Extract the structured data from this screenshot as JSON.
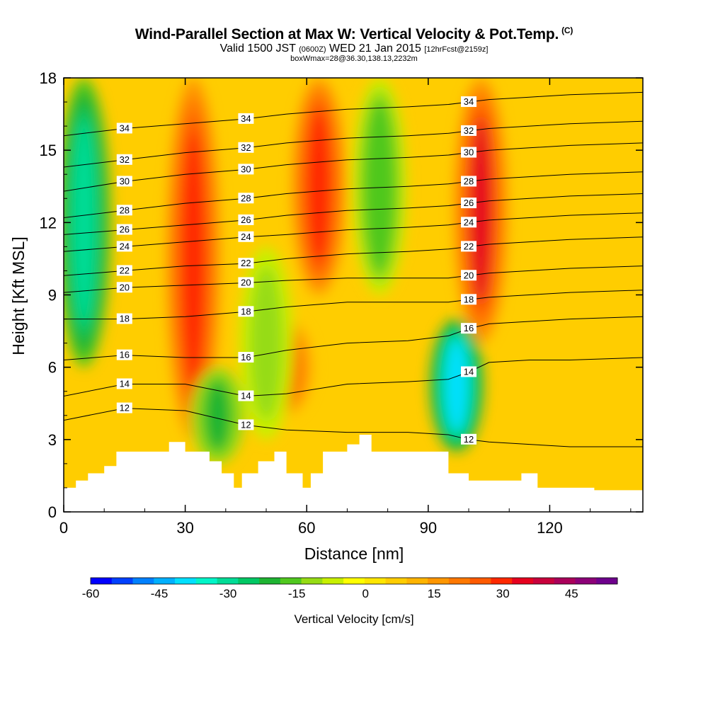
{
  "title": {
    "main": "Wind-Parallel Section at Max W: Vertical Velocity & Pot.Temp.",
    "copyright": "(C)",
    "valid_a": "Valid 1500 JST",
    "valid_z": "(0600Z)",
    "valid_b": "WED 21 Jan 2015",
    "valid_fcst": "[12hrFcst@2159z]",
    "box": "boxWmax=28@36.30,138.13,2232m"
  },
  "chart_data": {
    "type": "heatmap",
    "xlabel": "Distance [nm]",
    "ylabel": "Height [Kft MSL]",
    "xlim": [
      0,
      143
    ],
    "ylim": [
      0,
      18
    ],
    "xticks": [
      0,
      30,
      60,
      90,
      120
    ],
    "yticks": [
      0,
      3,
      6,
      9,
      12,
      15,
      18
    ],
    "colorbar": {
      "label": "Vertical Velocity [cm/s]",
      "ticks": [
        -60,
        -45,
        -30,
        -15,
        0,
        15,
        30,
        45
      ],
      "range": [
        -60,
        55
      ],
      "colors": [
        "#0000ff",
        "#0040ff",
        "#0080ff",
        "#00b0ff",
        "#00e0ff",
        "#00f5c8",
        "#00dc96",
        "#00c864",
        "#1eb432",
        "#50c81e",
        "#96dc14",
        "#c8f000",
        "#ffff00",
        "#ffe600",
        "#ffcd00",
        "#ffb400",
        "#ff9600",
        "#ff7800",
        "#ff5a00",
        "#ff2800",
        "#e6001e",
        "#c8003c",
        "#aa005a",
        "#8c0078",
        "#6e008c"
      ]
    },
    "vertical_velocity_features": [
      {
        "label": "updraft",
        "x": 32,
        "y_range": [
          3,
          18
        ],
        "peak": 28
      },
      {
        "label": "updraft",
        "x": 55,
        "y_range": [
          4,
          8
        ],
        "peak": 25
      },
      {
        "label": "updraft",
        "x": 63,
        "y_range": [
          9,
          18
        ],
        "peak": 30
      },
      {
        "label": "updraft",
        "x": 103,
        "y_range": [
          7,
          18
        ],
        "peak": 32
      },
      {
        "label": "downdraft",
        "x": 5,
        "y_range": [
          6,
          18
        ],
        "peak": -30
      },
      {
        "label": "downdraft",
        "x": 38,
        "y_range": [
          2,
          6
        ],
        "peak": -20
      },
      {
        "label": "downdraft",
        "x": 50,
        "y_range": [
          3,
          11
        ],
        "peak": -12
      },
      {
        "label": "downdraft",
        "x": 78,
        "y_range": [
          9,
          18
        ],
        "peak": -18
      },
      {
        "label": "downdraft",
        "x": 97,
        "y_range": [
          2.5,
          8
        ],
        "peak": -38
      }
    ],
    "theta_contours": [
      {
        "label": "12",
        "x": [
          0,
          15,
          30,
          45,
          55,
          70,
          85,
          95,
          100,
          105,
          115,
          125,
          143
        ],
        "y": [
          3.8,
          4.3,
          4.2,
          3.6,
          3.4,
          3.3,
          3.3,
          3.2,
          3.0,
          2.9,
          2.8,
          2.7,
          2.7
        ]
      },
      {
        "label": "14",
        "x": [
          0,
          15,
          30,
          45,
          55,
          70,
          85,
          95,
          100,
          105,
          115,
          125,
          143
        ],
        "y": [
          4.8,
          5.3,
          5.3,
          4.8,
          4.9,
          5.3,
          5.4,
          5.5,
          5.8,
          6.2,
          6.3,
          6.3,
          6.4
        ]
      },
      {
        "label": "16",
        "x": [
          0,
          15,
          30,
          45,
          55,
          70,
          85,
          95,
          100,
          105,
          115,
          125,
          143
        ],
        "y": [
          6.3,
          6.5,
          6.4,
          6.4,
          6.7,
          7.0,
          7.1,
          7.3,
          7.6,
          7.8,
          7.9,
          8.0,
          8.1
        ]
      },
      {
        "label": "18",
        "x": [
          0,
          15,
          30,
          45,
          55,
          70,
          85,
          95,
          100,
          105,
          115,
          125,
          143
        ],
        "y": [
          8.0,
          8.0,
          8.1,
          8.3,
          8.5,
          8.7,
          8.7,
          8.7,
          8.8,
          8.9,
          9.0,
          9.1,
          9.2
        ]
      },
      {
        "label": "20",
        "x": [
          0,
          15,
          30,
          45,
          55,
          70,
          85,
          95,
          100,
          105,
          115,
          125,
          143
        ],
        "y": [
          9.1,
          9.3,
          9.4,
          9.5,
          9.6,
          9.7,
          9.7,
          9.7,
          9.8,
          9.9,
          10.0,
          10.1,
          10.2
        ]
      },
      {
        "label": "22",
        "x": [
          0,
          15,
          30,
          45,
          55,
          70,
          85,
          95,
          100,
          105,
          115,
          125,
          143
        ],
        "y": [
          9.8,
          10.0,
          10.2,
          10.3,
          10.5,
          10.7,
          10.8,
          10.9,
          11.0,
          11.1,
          11.2,
          11.3,
          11.4
        ]
      },
      {
        "label": "24",
        "x": [
          0,
          15,
          30,
          45,
          55,
          70,
          85,
          95,
          100,
          105,
          115,
          125,
          143
        ],
        "y": [
          10.8,
          11.0,
          11.2,
          11.4,
          11.5,
          11.7,
          11.8,
          11.9,
          12.0,
          12.1,
          12.2,
          12.3,
          12.4
        ]
      },
      {
        "label": "26",
        "x": [
          0,
          15,
          30,
          45,
          55,
          70,
          85,
          95,
          100,
          105,
          115,
          125,
          143
        ],
        "y": [
          11.5,
          11.7,
          11.9,
          12.1,
          12.3,
          12.5,
          12.6,
          12.7,
          12.8,
          12.9,
          13.0,
          13.1,
          13.2
        ]
      },
      {
        "label": "28",
        "x": [
          0,
          15,
          30,
          45,
          55,
          70,
          85,
          95,
          100,
          105,
          115,
          125,
          143
        ],
        "y": [
          12.2,
          12.5,
          12.8,
          13.0,
          13.2,
          13.4,
          13.5,
          13.6,
          13.7,
          13.8,
          13.9,
          14.0,
          14.1
        ]
      },
      {
        "label": "30",
        "x": [
          0,
          15,
          30,
          45,
          55,
          70,
          85,
          95,
          100,
          105,
          115,
          125,
          143
        ],
        "y": [
          13.3,
          13.7,
          14.0,
          14.2,
          14.4,
          14.6,
          14.7,
          14.8,
          14.9,
          15.0,
          15.1,
          15.2,
          15.3
        ]
      },
      {
        "label": "32",
        "x": [
          0,
          15,
          30,
          45,
          55,
          70,
          85,
          95,
          100,
          105,
          115,
          125,
          143
        ],
        "y": [
          14.3,
          14.6,
          14.9,
          15.1,
          15.3,
          15.5,
          15.6,
          15.7,
          15.8,
          15.9,
          16.0,
          16.1,
          16.2
        ]
      },
      {
        "label": "34",
        "x": [
          0,
          15,
          30,
          45,
          55,
          70,
          85,
          95,
          100,
          105,
          115,
          125,
          143
        ],
        "y": [
          15.6,
          15.9,
          16.1,
          16.3,
          16.5,
          16.7,
          16.8,
          16.9,
          17.0,
          17.1,
          17.2,
          17.3,
          17.4
        ]
      }
    ],
    "terrain": {
      "x": [
        0,
        3,
        3,
        6,
        6,
        10,
        10,
        13,
        13,
        26,
        26,
        30,
        30,
        36,
        36,
        39,
        39,
        42,
        42,
        44,
        44,
        48,
        48,
        52,
        52,
        55,
        55,
        59,
        59,
        61,
        61,
        64,
        64,
        70,
        70,
        73,
        73,
        76,
        76,
        95,
        95,
        100,
        100,
        105,
        105,
        113,
        113,
        117,
        117,
        125,
        125,
        131,
        131,
        140,
        140,
        143
      ],
      "y": [
        1.0,
        1.0,
        1.3,
        1.3,
        1.6,
        1.6,
        1.9,
        1.9,
        2.5,
        2.5,
        2.9,
        2.9,
        2.5,
        2.5,
        2.1,
        2.1,
        1.6,
        1.6,
        1.0,
        1.0,
        1.6,
        1.6,
        2.1,
        2.1,
        2.5,
        2.5,
        1.6,
        1.6,
        1.0,
        1.0,
        1.6,
        1.6,
        2.5,
        2.5,
        2.8,
        2.8,
        3.2,
        3.2,
        2.5,
        2.5,
        1.6,
        1.6,
        1.3,
        1.3,
        1.3,
        1.3,
        1.6,
        1.6,
        1.0,
        1.0,
        1.0,
        1.0,
        0.9,
        0.9,
        0.9,
        0.9
      ]
    }
  }
}
